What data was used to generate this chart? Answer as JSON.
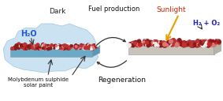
{
  "bg_color": "#ffffff",
  "cloud_color": "#c5dff0",
  "cloud_edge_color": "#99c0dc",
  "dark_label": "Dark",
  "h2o_label": "H₂O",
  "fuel_label": "Fuel production",
  "sunlight_label": "Sunlight",
  "h2_o2_label": "H₂ + O₂",
  "regen_label": "Regeneration",
  "moly_label": "Molybdenum sulphide\nsolar paint",
  "h2o_color": "#2255cc",
  "h2o2_color": "#2222bb",
  "sunlight_color": "#cc2200",
  "sunray_color": "#e8a000",
  "dark_color": "#222222",
  "label_color": "#111111",
  "arrow_color": "#333333",
  "left_panel_top": "#7abcd8",
  "left_panel_front": "#6aaac8",
  "left_panel_right": "#5898b8",
  "right_panel_top": "#d8d4cc",
  "right_panel_front": "#c8c4bc",
  "right_panel_right": "#b8b4ac",
  "paint_dark": "#8b1a1a",
  "paint_mid": "#bb3333",
  "paint_light": "#dd7777",
  "paint_white": "#eeeeee"
}
